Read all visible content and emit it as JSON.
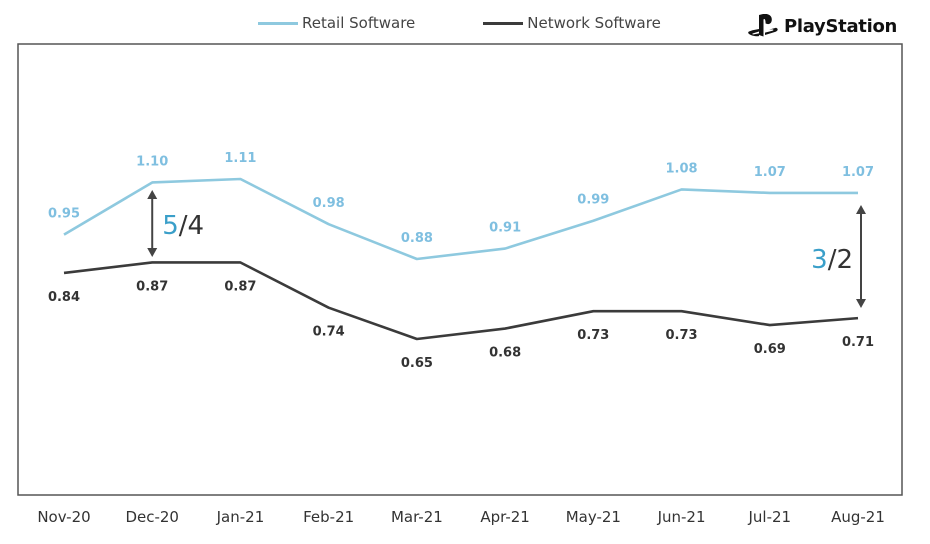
{
  "legend": {
    "retail": "Retail Software",
    "network": "Network Software"
  },
  "brand": {
    "name": "PlayStation",
    "logo_icon": "playstation-logo-icon"
  },
  "annotations": [
    {
      "highlight": "5",
      "rest": "/4",
      "category": "Dec-20"
    },
    {
      "highlight": "3",
      "rest": "/2",
      "category": "Aug-21"
    }
  ],
  "colors": {
    "retail": "#8ec9df",
    "network": "#3b3b3b",
    "retail_label": "#7fbfe0",
    "network_label": "#333333",
    "ratio_accent": "#3a9fc9",
    "frame": "#555555",
    "arrow": "#444444"
  },
  "chart_data": {
    "type": "line",
    "categories": [
      "Nov-20",
      "Dec-20",
      "Jan-21",
      "Feb-21",
      "Mar-21",
      "Apr-21",
      "May-21",
      "Jun-21",
      "Jul-21",
      "Aug-21"
    ],
    "series": [
      {
        "name": "Retail Software",
        "values": [
          0.95,
          1.1,
          1.11,
          0.98,
          0.88,
          0.91,
          0.99,
          1.08,
          1.07,
          1.07
        ]
      },
      {
        "name": "Network Software",
        "values": [
          0.84,
          0.87,
          0.87,
          0.74,
          0.65,
          0.68,
          0.73,
          0.73,
          0.69,
          0.71
        ]
      }
    ],
    "data_labels": [
      [
        "0.95",
        "1.10",
        "1.11",
        "0.98",
        "0.88",
        "0.91",
        "0.99",
        "1.08",
        "1.07",
        "1.07"
      ],
      [
        "0.84",
        "0.87",
        "0.87",
        "0.74",
        "0.65",
        "0.68",
        "0.73",
        "0.73",
        "0.69",
        "0.71"
      ]
    ],
    "grid": false,
    "legend": "top"
  }
}
